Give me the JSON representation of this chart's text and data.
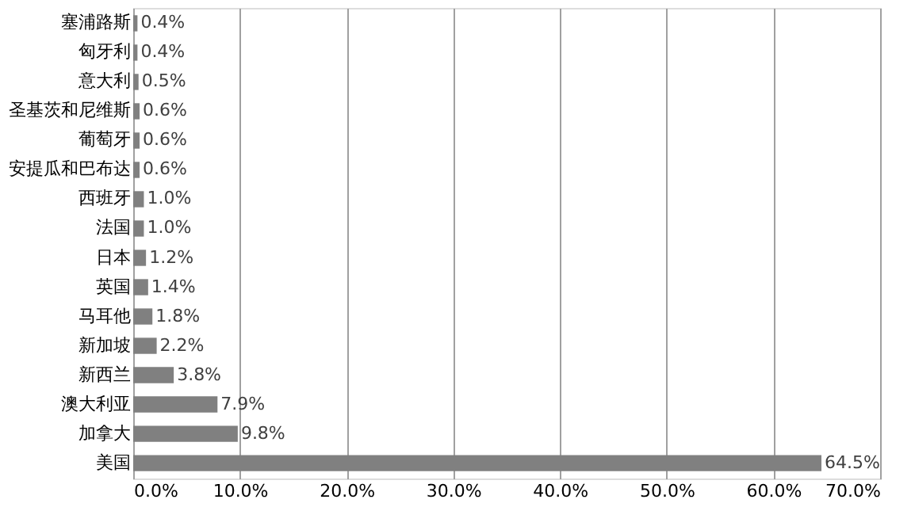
{
  "chart_data": {
    "type": "bar",
    "orientation": "horizontal",
    "categories": [
      "塞浦路斯",
      "匈牙利",
      "意大利",
      "圣基茨和尼维斯",
      "葡萄牙",
      "安提瓜和巴布达",
      "西班牙",
      "法国",
      "日本",
      "英国",
      "马耳他",
      "新加坡",
      "新西兰",
      "澳大利亚",
      "加拿大",
      "美国"
    ],
    "values": [
      0.4,
      0.4,
      0.5,
      0.6,
      0.6,
      0.6,
      1.0,
      1.0,
      1.2,
      1.4,
      1.8,
      2.2,
      3.8,
      7.9,
      9.8,
      64.5
    ],
    "value_labels": [
      "0.4%",
      "0.4%",
      "0.5%",
      "0.6%",
      "0.6%",
      "0.6%",
      "1.0%",
      "1.0%",
      "1.2%",
      "1.4%",
      "1.8%",
      "2.2%",
      "3.8%",
      "7.9%",
      "9.8%",
      "64.5%"
    ],
    "color": "#808080",
    "xlim": [
      0,
      70
    ],
    "xticks": [
      {
        "value": 0,
        "label": "0.0%"
      },
      {
        "value": 10,
        "label": "10.0%"
      },
      {
        "value": 20,
        "label": "20.0%"
      },
      {
        "value": 30,
        "label": "30.0%"
      },
      {
        "value": 40,
        "label": "40.0%"
      },
      {
        "value": 50,
        "label": "50.0%"
      },
      {
        "value": 60,
        "label": "60.0%"
      },
      {
        "value": 70,
        "label": "70.0%"
      }
    ],
    "grid": "x"
  }
}
